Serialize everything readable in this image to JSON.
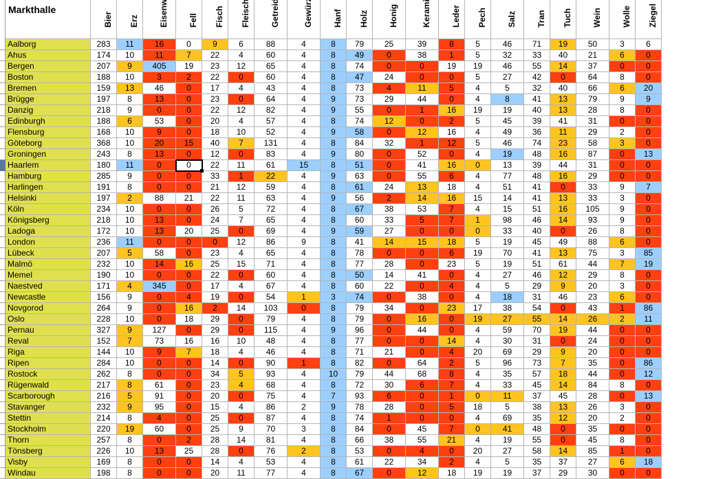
{
  "title": "Markthalle",
  "columns": [
    "Bier",
    "Erz",
    "Eisenwaren",
    "Fell",
    "Fisch",
    "Fleisch",
    "Getreide",
    "Gewürze",
    "Hanf",
    "Holz",
    "Honig",
    "Keramik",
    "Leder",
    "Pech",
    "Salz",
    "Tran",
    "Tuch",
    "Wein",
    "Wolle",
    "Ziegel"
  ],
  "colors": {
    "red": "#ff4010",
    "orange": "#ffc420",
    "blue": "#9ccfff",
    "city": "#e0e04e",
    "white": "#ffffff"
  },
  "rows": [
    {
      "city": "Aalborg",
      "v": [
        "283",
        "11",
        "16",
        "0",
        "9",
        "6",
        "88",
        "4",
        "8",
        "79",
        "25",
        "39",
        "8",
        "5",
        "46",
        "71",
        "19",
        "50",
        "3",
        "6"
      ],
      "c": "wbrwowwwbwwwrwwwowww"
    },
    {
      "city": "Ahus",
      "v": [
        "174",
        "10",
        "11",
        "7",
        "22",
        "4",
        "60",
        "4",
        "8",
        "49",
        "0",
        "38",
        "1",
        "5",
        "32",
        "33",
        "40",
        "21",
        "6",
        "0"
      ],
      "c": "wwrowwwwbbrwrwwwwwor"
    },
    {
      "city": "Bergen",
      "v": [
        "207",
        "9",
        "405",
        "19",
        "23",
        "12",
        "65",
        "4",
        "8",
        "74",
        "0",
        "0",
        "19",
        "19",
        "46",
        "55",
        "14",
        "37",
        "0",
        "0"
      ],
      "c": "wobwwwwwbwrrwwwwowrr"
    },
    {
      "city": "Boston",
      "v": [
        "188",
        "10",
        "3",
        "2",
        "22",
        "0",
        "60",
        "4",
        "8",
        "47",
        "24",
        "0",
        "0",
        "5",
        "27",
        "42",
        "0",
        "64",
        "8",
        "0"
      ],
      "c": "wwrrwrwwbbwrrwwwrwwr"
    },
    {
      "city": "Bremen",
      "v": [
        "159",
        "13",
        "46",
        "0",
        "17",
        "4",
        "43",
        "4",
        "8",
        "73",
        "4",
        "11",
        "5",
        "4",
        "5",
        "32",
        "40",
        "66",
        "6",
        "20"
      ],
      "c": "wowrwwwwbwrorwwwwwob"
    },
    {
      "city": "Brügge",
      "v": [
        "197",
        "8",
        "13",
        "0",
        "23",
        "0",
        "64",
        "4",
        "9",
        "73",
        "29",
        "44",
        "0",
        "4",
        "8",
        "41",
        "13",
        "79",
        "9",
        "9"
      ],
      "c": "wwrrwrwwbwwwrwbwowwb"
    },
    {
      "city": "Danzig",
      "v": [
        "218",
        "9",
        "0",
        "0",
        "22",
        "12",
        "82",
        "4",
        "9",
        "55",
        "0",
        "1",
        "16",
        "19",
        "19",
        "40",
        "13",
        "28",
        "8",
        "0"
      ],
      "c": "wwrrwwwwbwrrowwwowwr"
    },
    {
      "city": "Edinburgh",
      "v": [
        "188",
        "6",
        "53",
        "0",
        "20",
        "4",
        "57",
        "4",
        "8",
        "74",
        "12",
        "0",
        "2",
        "5",
        "45",
        "39",
        "41",
        "31",
        "0",
        "0"
      ],
      "c": "wowrwwwwbworrwwwwwrr"
    },
    {
      "city": "Flensburg",
      "v": [
        "168",
        "10",
        "9",
        "0",
        "18",
        "10",
        "52",
        "4",
        "9",
        "58",
        "0",
        "12",
        "16",
        "4",
        "49",
        "36",
        "11",
        "29",
        "2",
        "0"
      ],
      "c": "wwrrwwwwbbrowwwwowwr"
    },
    {
      "city": "Göteborg",
      "v": [
        "368",
        "10",
        "20",
        "15",
        "40",
        "7",
        "131",
        "4",
        "8",
        "84",
        "32",
        "1",
        "12",
        "5",
        "46",
        "74",
        "23",
        "58",
        "3",
        "0"
      ],
      "c": "wwrrwowwbwwrrwwwowor"
    },
    {
      "city": "Groningen",
      "v": [
        "243",
        "8",
        "13",
        "0",
        "12",
        "0",
        "83",
        "4",
        "9",
        "80",
        "0",
        "52",
        "0",
        "4",
        "19",
        "48",
        "16",
        "87",
        "0",
        "13"
      ],
      "c": "wwrrwrwwbwrwrwbwowrb"
    },
    {
      "city": "Haarlem",
      "v": [
        "180",
        "11",
        "0",
        "0",
        "22",
        "11",
        "61",
        "15",
        "8",
        "51",
        "0",
        "41",
        "16",
        "0",
        "13",
        "39",
        "44",
        "31",
        "0",
        "0"
      ],
      "c": "wbrwwwwbbbrwoowwwwrr"
    },
    {
      "city": "Hamburg",
      "v": [
        "285",
        "9",
        "0",
        "0",
        "33",
        "1",
        "22",
        "4",
        "9",
        "63",
        "0",
        "55",
        "6",
        "4",
        "77",
        "48",
        "16",
        "29",
        "0",
        "0"
      ],
      "c": "wwrrwrowbwrwrwwwowrr"
    },
    {
      "city": "Harlingen",
      "v": [
        "191",
        "8",
        "0",
        "0",
        "21",
        "12",
        "59",
        "4",
        "8",
        "61",
        "24",
        "13",
        "18",
        "4",
        "51",
        "41",
        "0",
        "33",
        "9",
        "7"
      ],
      "c": "wwrrwwwwbbwowwwwrwwb"
    },
    {
      "city": "Helsinki",
      "v": [
        "197",
        "2",
        "88",
        "21",
        "22",
        "11",
        "63",
        "4",
        "9",
        "56",
        "2",
        "14",
        "16",
        "15",
        "14",
        "41",
        "13",
        "33",
        "3",
        "0"
      ],
      "c": "wowwwwwwbwroowwwowwr"
    },
    {
      "city": "Köln",
      "v": [
        "234",
        "10",
        "0",
        "0",
        "26",
        "5",
        "72",
        "4",
        "8",
        "67",
        "38",
        "53",
        "7",
        "4",
        "15",
        "51",
        "16",
        "105",
        "9",
        "0"
      ],
      "c": "wwrrwwwwbbwwrwwwowwr"
    },
    {
      "city": "Königsberg",
      "v": [
        "218",
        "10",
        "13",
        "0",
        "24",
        "7",
        "65",
        "4",
        "8",
        "60",
        "33",
        "5",
        "7",
        "1",
        "98",
        "46",
        "14",
        "93",
        "9",
        "0"
      ],
      "c": "wwrrwwwwbwwrrowwowwr"
    },
    {
      "city": "Ladoga",
      "v": [
        "172",
        "10",
        "13",
        "20",
        "25",
        "0",
        "69",
        "4",
        "9",
        "59",
        "27",
        "0",
        "0",
        "0",
        "33",
        "40",
        "0",
        "26",
        "8",
        "0"
      ],
      "c": "wwrwwrwwbbwrrowwrwwr"
    },
    {
      "city": "London",
      "v": [
        "236",
        "11",
        "0",
        "0",
        "0",
        "12",
        "86",
        "9",
        "8",
        "41",
        "14",
        "15",
        "18",
        "5",
        "19",
        "45",
        "49",
        "88",
        "6",
        "0"
      ],
      "c": "wbrrrwwwbwooowwwwwor"
    },
    {
      "city": "Lübeck",
      "v": [
        "207",
        "5",
        "58",
        "0",
        "23",
        "4",
        "65",
        "4",
        "8",
        "78",
        "0",
        "0",
        "6",
        "19",
        "70",
        "41",
        "13",
        "75",
        "3",
        "85"
      ],
      "c": "wowrwwwwbwrrrwwwowwb"
    },
    {
      "city": "Malmö",
      "v": [
        "232",
        "10",
        "14",
        "16",
        "25",
        "15",
        "71",
        "4",
        "8",
        "77",
        "28",
        "0",
        "23",
        "5",
        "19",
        "51",
        "61",
        "44",
        "7",
        "19"
      ],
      "c": "wwrowwwwbwwrwwwwwwob"
    },
    {
      "city": "Memel",
      "v": [
        "190",
        "10",
        "0",
        "0",
        "22",
        "0",
        "60",
        "4",
        "8",
        "50",
        "14",
        "41",
        "0",
        "4",
        "27",
        "46",
        "12",
        "29",
        "8",
        "0"
      ],
      "c": "wwrrwrwwbbwwrwwwowwr"
    },
    {
      "city": "Naestved",
      "v": [
        "171",
        "4",
        "345",
        "0",
        "17",
        "4",
        "67",
        "4",
        "8",
        "60",
        "22",
        "0",
        "4",
        "4",
        "5",
        "29",
        "9",
        "20",
        "3",
        "0"
      ],
      "c": "wobrwwwwbwwrrwwwowwr"
    },
    {
      "city": "Newcastle",
      "v": [
        "156",
        "9",
        "0",
        "4",
        "19",
        "0",
        "54",
        "1",
        "3",
        "74",
        "0",
        "38",
        "0",
        "4",
        "18",
        "31",
        "46",
        "23",
        "6",
        "0"
      ],
      "c": "wwrrwrwobbrwrwbwwwor"
    },
    {
      "city": "Novgorod",
      "v": [
        "264",
        "9",
        "0",
        "16",
        "2",
        "14",
        "103",
        "0",
        "8",
        "79",
        "34",
        "0",
        "23",
        "17",
        "38",
        "54",
        "0",
        "43",
        "1",
        "86"
      ],
      "c": "wwrorwwrbwwrowwwrwrb"
    },
    {
      "city": "Oslo",
      "v": [
        "228",
        "10",
        "0",
        "18",
        "29",
        "0",
        "79",
        "4",
        "8",
        "79",
        "0",
        "16",
        "0",
        "19",
        "27",
        "55",
        "14",
        "26",
        "2",
        "11"
      ],
      "c": "wwrwwrwwbwroroooooob"
    },
    {
      "city": "Pernau",
      "v": [
        "327",
        "9",
        "127",
        "0",
        "29",
        "0",
        "115",
        "4",
        "9",
        "96",
        "0",
        "44",
        "0",
        "4",
        "59",
        "70",
        "19",
        "44",
        "0",
        "0"
      ],
      "c": "wowrwrwwbwrwrwwwowrr"
    },
    {
      "city": "Reval",
      "v": [
        "152",
        "7",
        "73",
        "16",
        "16",
        "10",
        "48",
        "4",
        "8",
        "77",
        "0",
        "0",
        "14",
        "4",
        "30",
        "31",
        "0",
        "24",
        "0",
        "0"
      ],
      "c": "wowwwwwwbwrrowwwrwrr"
    },
    {
      "city": "Riga",
      "v": [
        "144",
        "10",
        "9",
        "7",
        "18",
        "4",
        "46",
        "4",
        "8",
        "71",
        "21",
        "0",
        "4",
        "20",
        "69",
        "29",
        "9",
        "20",
        "0",
        "0"
      ],
      "c": "wwrowwwwbwwrrwwwowrr"
    },
    {
      "city": "Ripen",
      "v": [
        "284",
        "10",
        "0",
        "0",
        "14",
        "0",
        "90",
        "1",
        "8",
        "82",
        "0",
        "64",
        "2",
        "5",
        "96",
        "73",
        "7",
        "35",
        "0",
        "86"
      ],
      "c": "wwrrwrwrbwrwrwwwowrb"
    },
    {
      "city": "Rostock",
      "v": [
        "262",
        "8",
        "0",
        "0",
        "34",
        "5",
        "93",
        "4",
        "10",
        "79",
        "44",
        "68",
        "8",
        "4",
        "35",
        "57",
        "18",
        "44",
        "0",
        "12"
      ],
      "c": "wwrrwowwbwwwrwwwowrb"
    },
    {
      "city": "Rügenwald",
      "v": [
        "217",
        "8",
        "61",
        "0",
        "23",
        "4",
        "68",
        "4",
        "8",
        "72",
        "30",
        "6",
        "7",
        "4",
        "33",
        "45",
        "14",
        "84",
        "8",
        "0"
      ],
      "c": "wowrwowwbwwrrwwwowwr"
    },
    {
      "city": "Scarborough",
      "v": [
        "216",
        "5",
        "91",
        "0",
        "20",
        "0",
        "75",
        "4",
        "7",
        "93",
        "6",
        "0",
        "1",
        "0",
        "11",
        "37",
        "45",
        "28",
        "0",
        "13"
      ],
      "c": "wowrwrwwbwrrroowwwrb"
    },
    {
      "city": "Stavanger",
      "v": [
        "232",
        "9",
        "95",
        "0",
        "15",
        "4",
        "86",
        "2",
        "9",
        "78",
        "28",
        "0",
        "5",
        "18",
        "5",
        "38",
        "13",
        "26",
        "3",
        "0"
      ],
      "c": "wowrwwwwbwwrrwwwowwr"
    },
    {
      "city": "Stettin",
      "v": [
        "214",
        "8",
        "4",
        "0",
        "25",
        "0",
        "87",
        "4",
        "8",
        "74",
        "1",
        "0",
        "0",
        "4",
        "69",
        "35",
        "12",
        "20",
        "2",
        "0"
      ],
      "c": "wwrrwrwwbwrrrwwwowwr"
    },
    {
      "city": "Stockholm",
      "v": [
        "220",
        "19",
        "60",
        "0",
        "25",
        "9",
        "70",
        "3",
        "8",
        "84",
        "0",
        "45",
        "7",
        "0",
        "41",
        "48",
        "0",
        "35",
        "0",
        "0"
      ],
      "c": "wowrwwwwbwrwroowrwrr"
    },
    {
      "city": "Thorn",
      "v": [
        "257",
        "8",
        "0",
        "2",
        "28",
        "14",
        "81",
        "4",
        "8",
        "66",
        "38",
        "55",
        "21",
        "4",
        "19",
        "55",
        "0",
        "45",
        "8",
        "0"
      ],
      "c": "wwrrwwwwbwwwowwwrwwr"
    },
    {
      "city": "Tönsberg",
      "v": [
        "226",
        "10",
        "13",
        "25",
        "28",
        "0",
        "76",
        "2",
        "8",
        "53",
        "0",
        "4",
        "0",
        "20",
        "27",
        "58",
        "14",
        "85",
        "1",
        "0"
      ],
      "c": "wwrwwrwobwrrrwwwowrr"
    },
    {
      "city": "Visby",
      "v": [
        "169",
        "8",
        "0",
        "0",
        "14",
        "4",
        "53",
        "4",
        "8",
        "61",
        "22",
        "34",
        "2",
        "4",
        "5",
        "35",
        "37",
        "27",
        "6",
        "18"
      ],
      "c": "wwrrwwwwbwwwrwwwwwob"
    },
    {
      "city": "Windau",
      "v": [
        "198",
        "8",
        "0",
        "0",
        "20",
        "11",
        "77",
        "4",
        "8",
        "67",
        "0",
        "12",
        "18",
        "19",
        "19",
        "37",
        "29",
        "30",
        "0",
        "0"
      ],
      "c": "wwrrwwwwbbrowwwwwwrr"
    }
  ]
}
